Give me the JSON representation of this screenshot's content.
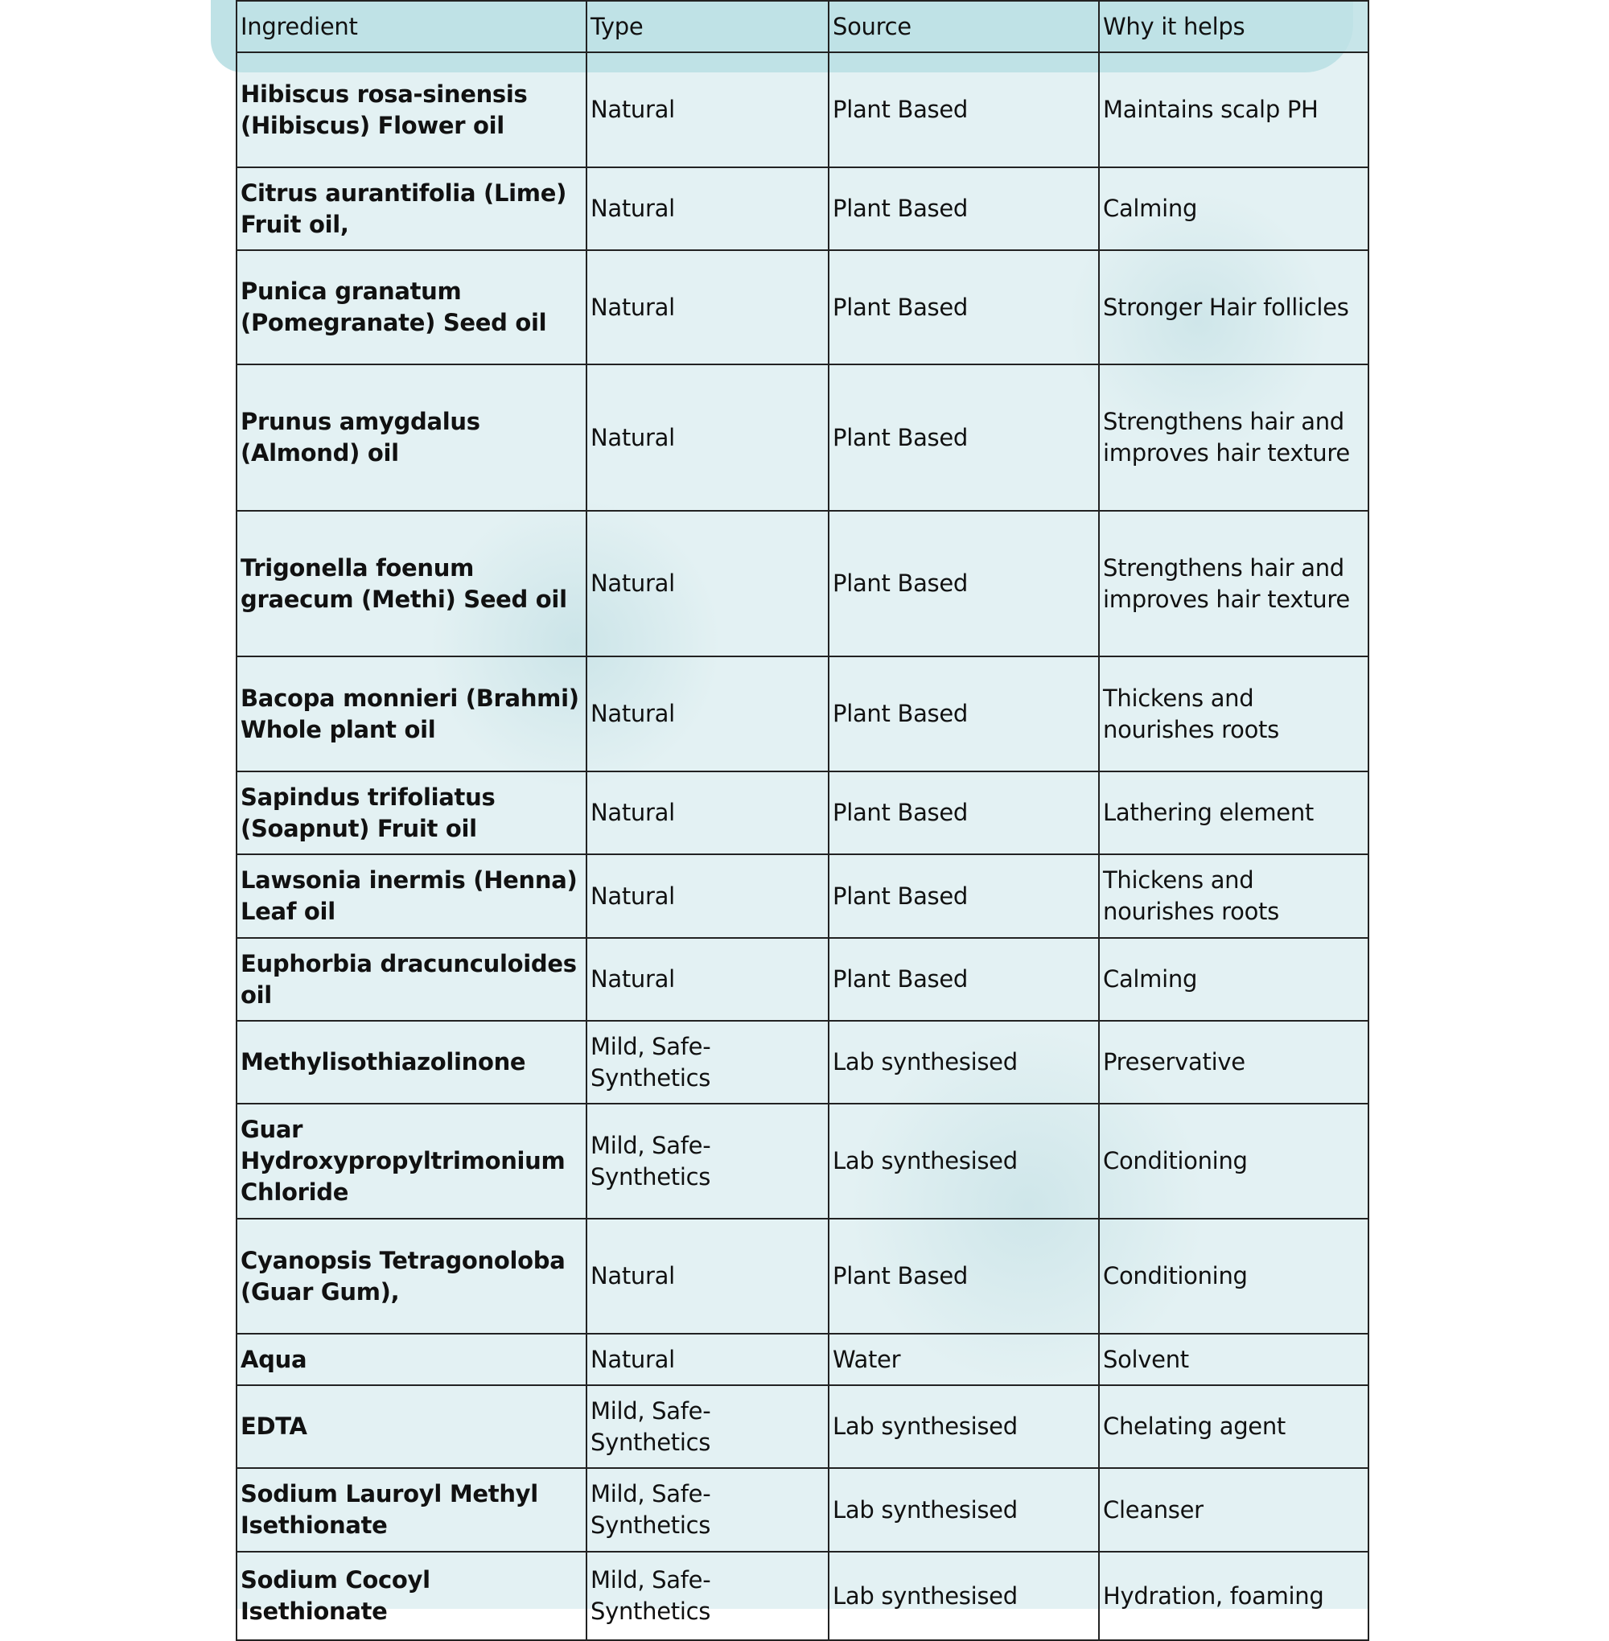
{
  "colors": {
    "header_bg": "#bfe2e6",
    "body_bg": "#e3f1f3",
    "border": "#222222"
  },
  "table": {
    "headers": [
      "Ingredient",
      "Type",
      "Source",
      "Why it helps"
    ],
    "rows": [
      {
        "ingredient": "Hibiscus rosa-sinensis (Hibiscus) Flower oil",
        "type": "Natural",
        "source": "Plant Based",
        "why": "Maintains scalp PH"
      },
      {
        "ingredient": "Citrus aurantifolia (Lime) Fruit oil,",
        "type": "Natural",
        "source": "Plant Based",
        "why": "Calming"
      },
      {
        "ingredient": "Punica granatum (Pomegranate) Seed oil",
        "type": "Natural",
        "source": "Plant Based",
        "why": "Stronger Hair follicles"
      },
      {
        "ingredient": "Prunus amygdalus (Almond) oil",
        "type": "Natural",
        "source": "Plant Based",
        "why": "Strengthens hair and improves hair texture"
      },
      {
        "ingredient": "Trigonella foenum graecum (Methi) Seed oil",
        "type": "Natural",
        "source": "Plant Based",
        "why": "Strengthens hair and improves hair texture"
      },
      {
        "ingredient": "Bacopa monnieri (Brahmi) Whole plant oil",
        "type": "Natural",
        "source": "Plant Based",
        "why": "Thickens and nourishes roots"
      },
      {
        "ingredient": "Sapindus trifoliatus (Soapnut) Fruit oil",
        "type": "Natural",
        "source": "Plant Based",
        "why": "Lathering element"
      },
      {
        "ingredient": "Lawsonia inermis (Henna) Leaf oil",
        "type": "Natural",
        "source": "Plant Based",
        "why": "Thickens and nourishes roots"
      },
      {
        "ingredient": "Euphorbia dracunculoides oil",
        "type": "Natural",
        "source": "Plant Based",
        "why": "Calming"
      },
      {
        "ingredient": "Methylisothiazolinone",
        "type": "Mild, Safe-Synthetics",
        "source": "Lab synthesised",
        "why": "Preservative"
      },
      {
        "ingredient": "Guar Hydroxypropyltrimonium Chloride",
        "type": "Mild, Safe-Synthetics",
        "source": "Lab synthesised",
        "why": "Conditioning"
      },
      {
        "ingredient": "Cyanopsis Tetragonoloba (Guar Gum),",
        "type": "Natural",
        "source": "Plant Based",
        "why": "Conditioning"
      },
      {
        "ingredient": "Aqua",
        "type": "Natural",
        "source": "Water",
        "why": "Solvent"
      },
      {
        "ingredient": "EDTA",
        "type": "Mild, Safe-Synthetics",
        "source": "Lab synthesised",
        "why": "Chelating agent"
      },
      {
        "ingredient": "Sodium Lauroyl Methyl Isethionate",
        "type": "Mild, Safe-Synthetics",
        "source": "Lab synthesised",
        "why": "Cleanser"
      },
      {
        "ingredient": "Sodium Cocoyl Isethionate",
        "type": "Mild, Safe-Synthetics",
        "source": "Lab synthesised",
        "why": "Hydration, foaming"
      }
    ]
  }
}
